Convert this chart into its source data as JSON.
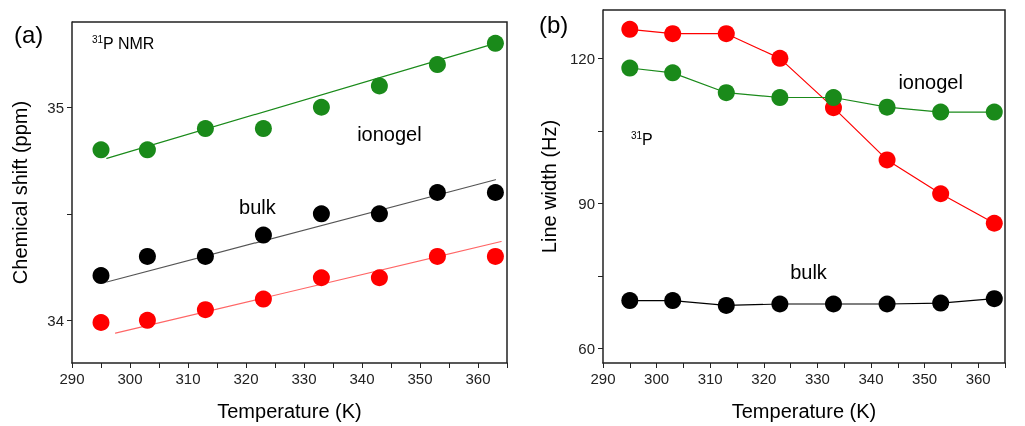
{
  "chart_data": [
    {
      "type": "scatter",
      "title": "(a)",
      "xlabel": "Temperature (K)",
      "ylabel": "Chemical shift (ppm)",
      "annotations": [
        "$^{31}$P NMR"
      ],
      "x": [
        295,
        303,
        313,
        323,
        333,
        343,
        353,
        363
      ],
      "xlim": [
        290,
        365
      ],
      "xticks": [
        290,
        {
          "value": 295,
          "label": null
        },
        300,
        {
          "value": 305,
          "label": null
        },
        310,
        {
          "value": 315,
          "label": null
        },
        320,
        {
          "value": 325,
          "label": null
        },
        330,
        {
          "value": 335,
          "label": null
        },
        340,
        {
          "value": 345,
          "label": null
        },
        350,
        {
          "value": 355,
          "label": null
        },
        360,
        {
          "value": 365,
          "label": null
        }
      ],
      "ylim": [
        33.8,
        35.4
      ],
      "yticks": [
        34,
        {
          "value": 34.5,
          "label": null
        },
        35
      ],
      "grid": false,
      "marker": "circle",
      "series": [
        {
          "name": "ionogel",
          "color": "#1a8a1a",
          "values": [
            34.8,
            34.8,
            34.9,
            34.9,
            35.0,
            35.1,
            35.2,
            35.3
          ]
        },
        {
          "name": "bulk",
          "color": "#000000",
          "values": [
            34.21,
            34.3,
            34.3,
            34.4,
            34.5,
            34.5,
            34.6,
            34.6
          ]
        },
        {
          "color": "#ff0000",
          "values": [
            33.99,
            34.0,
            34.05,
            34.1,
            34.2,
            34.2,
            34.3,
            34.3
          ]
        },
        {
          "type": "line",
          "marker": "none",
          "color": "#1a8a1a",
          "x": [
            296,
            363
          ],
          "values": [
            34.76,
            35.3
          ]
        },
        {
          "type": "line",
          "marker": "none",
          "color": "#555555",
          "x": [
            296,
            363
          ],
          "values": [
            34.18,
            34.66
          ]
        },
        {
          "type": "line",
          "marker": "none",
          "color": "#ff6666",
          "x": [
            297.5,
            364
          ],
          "values": [
            33.94,
            34.37
          ]
        }
      ]
    },
    {
      "type": "line",
      "title": "(b)",
      "xlabel": "Temperature (K)",
      "ylabel": "Line width (Hz)",
      "annotations": [
        "$^{31}$P"
      ],
      "x": [
        295,
        303,
        313,
        323,
        333,
        343,
        353,
        363
      ],
      "xlim": [
        290,
        365
      ],
      "xticks": [
        290,
        {
          "value": 295,
          "label": null
        },
        300,
        {
          "value": 305,
          "label": null
        },
        310,
        {
          "value": 315,
          "label": null
        },
        320,
        {
          "value": 325,
          "label": null
        },
        330,
        {
          "value": 335,
          "label": null
        },
        340,
        {
          "value": 345,
          "label": null
        },
        350,
        {
          "value": 355,
          "label": null
        },
        360,
        {
          "value": 365,
          "label": null
        }
      ],
      "ylim": [
        57,
        130
      ],
      "yticks": [
        60,
        {
          "value": 75,
          "label": null
        },
        90,
        {
          "value": 105,
          "label": null
        },
        120
      ],
      "grid": false,
      "marker": "circle",
      "series": [
        {
          "color": "#ff0000",
          "values": [
            126.0,
            125.1,
            125.1,
            120.0,
            109.8,
            99.0,
            92.0,
            85.9
          ]
        },
        {
          "name": "ionogel",
          "color": "#1a8a1a",
          "values": [
            118.0,
            117.0,
            112.9,
            111.9,
            111.9,
            109.9,
            108.9,
            108.9
          ]
        },
        {
          "name": "bulk",
          "color": "#000000",
          "values": [
            69.9,
            69.9,
            68.9,
            69.2,
            69.2,
            69.2,
            69.4,
            70.3
          ]
        }
      ]
    }
  ]
}
